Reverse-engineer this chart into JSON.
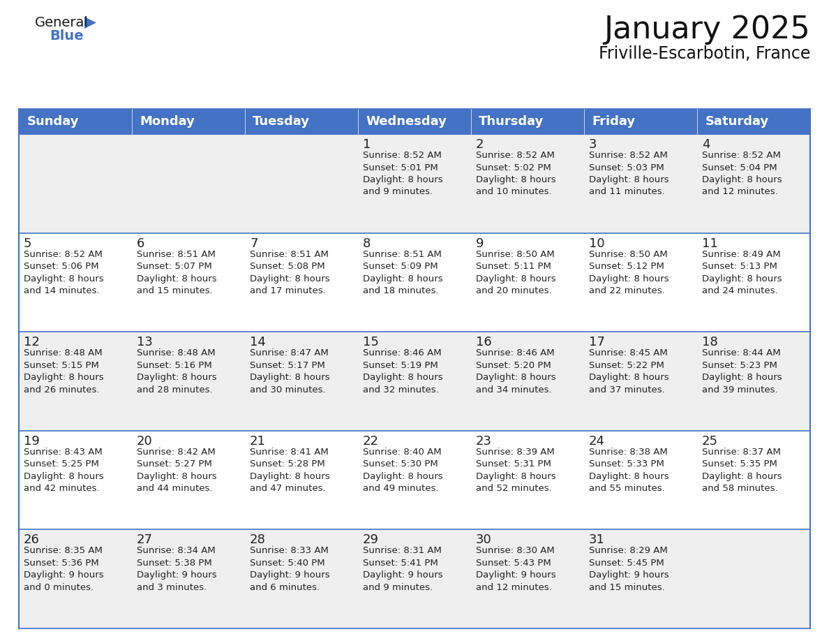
{
  "title": "January 2025",
  "subtitle": "Friville-Escarbotin, France",
  "header_color": "#4472C4",
  "header_text_color": "#FFFFFF",
  "cell_bg_white": "#FFFFFF",
  "cell_bg_gray": "#EFEFEF",
  "border_color": "#4472C4",
  "day_names": [
    "Sunday",
    "Monday",
    "Tuesday",
    "Wednesday",
    "Thursday",
    "Friday",
    "Saturday"
  ],
  "title_fontsize": 32,
  "subtitle_fontsize": 17,
  "day_header_fontsize": 13,
  "cell_number_fontsize": 13,
  "cell_text_fontsize": 9.5,
  "days": [
    {
      "date": 1,
      "col": 3,
      "row": 0,
      "sunrise": "8:52 AM",
      "sunset": "5:01 PM",
      "daylight_h": "8 hours",
      "daylight_m": "9 minutes"
    },
    {
      "date": 2,
      "col": 4,
      "row": 0,
      "sunrise": "8:52 AM",
      "sunset": "5:02 PM",
      "daylight_h": "8 hours",
      "daylight_m": "10 minutes"
    },
    {
      "date": 3,
      "col": 5,
      "row": 0,
      "sunrise": "8:52 AM",
      "sunset": "5:03 PM",
      "daylight_h": "8 hours",
      "daylight_m": "11 minutes"
    },
    {
      "date": 4,
      "col": 6,
      "row": 0,
      "sunrise": "8:52 AM",
      "sunset": "5:04 PM",
      "daylight_h": "8 hours",
      "daylight_m": "12 minutes"
    },
    {
      "date": 5,
      "col": 0,
      "row": 1,
      "sunrise": "8:52 AM",
      "sunset": "5:06 PM",
      "daylight_h": "8 hours",
      "daylight_m": "14 minutes"
    },
    {
      "date": 6,
      "col": 1,
      "row": 1,
      "sunrise": "8:51 AM",
      "sunset": "5:07 PM",
      "daylight_h": "8 hours",
      "daylight_m": "15 minutes"
    },
    {
      "date": 7,
      "col": 2,
      "row": 1,
      "sunrise": "8:51 AM",
      "sunset": "5:08 PM",
      "daylight_h": "8 hours",
      "daylight_m": "17 minutes"
    },
    {
      "date": 8,
      "col": 3,
      "row": 1,
      "sunrise": "8:51 AM",
      "sunset": "5:09 PM",
      "daylight_h": "8 hours",
      "daylight_m": "18 minutes"
    },
    {
      "date": 9,
      "col": 4,
      "row": 1,
      "sunrise": "8:50 AM",
      "sunset": "5:11 PM",
      "daylight_h": "8 hours",
      "daylight_m": "20 minutes"
    },
    {
      "date": 10,
      "col": 5,
      "row": 1,
      "sunrise": "8:50 AM",
      "sunset": "5:12 PM",
      "daylight_h": "8 hours",
      "daylight_m": "22 minutes"
    },
    {
      "date": 11,
      "col": 6,
      "row": 1,
      "sunrise": "8:49 AM",
      "sunset": "5:13 PM",
      "daylight_h": "8 hours",
      "daylight_m": "24 minutes"
    },
    {
      "date": 12,
      "col": 0,
      "row": 2,
      "sunrise": "8:48 AM",
      "sunset": "5:15 PM",
      "daylight_h": "8 hours",
      "daylight_m": "26 minutes"
    },
    {
      "date": 13,
      "col": 1,
      "row": 2,
      "sunrise": "8:48 AM",
      "sunset": "5:16 PM",
      "daylight_h": "8 hours",
      "daylight_m": "28 minutes"
    },
    {
      "date": 14,
      "col": 2,
      "row": 2,
      "sunrise": "8:47 AM",
      "sunset": "5:17 PM",
      "daylight_h": "8 hours",
      "daylight_m": "30 minutes"
    },
    {
      "date": 15,
      "col": 3,
      "row": 2,
      "sunrise": "8:46 AM",
      "sunset": "5:19 PM",
      "daylight_h": "8 hours",
      "daylight_m": "32 minutes"
    },
    {
      "date": 16,
      "col": 4,
      "row": 2,
      "sunrise": "8:46 AM",
      "sunset": "5:20 PM",
      "daylight_h": "8 hours",
      "daylight_m": "34 minutes"
    },
    {
      "date": 17,
      "col": 5,
      "row": 2,
      "sunrise": "8:45 AM",
      "sunset": "5:22 PM",
      "daylight_h": "8 hours",
      "daylight_m": "37 minutes"
    },
    {
      "date": 18,
      "col": 6,
      "row": 2,
      "sunrise": "8:44 AM",
      "sunset": "5:23 PM",
      "daylight_h": "8 hours",
      "daylight_m": "39 minutes"
    },
    {
      "date": 19,
      "col": 0,
      "row": 3,
      "sunrise": "8:43 AM",
      "sunset": "5:25 PM",
      "daylight_h": "8 hours",
      "daylight_m": "42 minutes"
    },
    {
      "date": 20,
      "col": 1,
      "row": 3,
      "sunrise": "8:42 AM",
      "sunset": "5:27 PM",
      "daylight_h": "8 hours",
      "daylight_m": "44 minutes"
    },
    {
      "date": 21,
      "col": 2,
      "row": 3,
      "sunrise": "8:41 AM",
      "sunset": "5:28 PM",
      "daylight_h": "8 hours",
      "daylight_m": "47 minutes"
    },
    {
      "date": 22,
      "col": 3,
      "row": 3,
      "sunrise": "8:40 AM",
      "sunset": "5:30 PM",
      "daylight_h": "8 hours",
      "daylight_m": "49 minutes"
    },
    {
      "date": 23,
      "col": 4,
      "row": 3,
      "sunrise": "8:39 AM",
      "sunset": "5:31 PM",
      "daylight_h": "8 hours",
      "daylight_m": "52 minutes"
    },
    {
      "date": 24,
      "col": 5,
      "row": 3,
      "sunrise": "8:38 AM",
      "sunset": "5:33 PM",
      "daylight_h": "8 hours",
      "daylight_m": "55 minutes"
    },
    {
      "date": 25,
      "col": 6,
      "row": 3,
      "sunrise": "8:37 AM",
      "sunset": "5:35 PM",
      "daylight_h": "8 hours",
      "daylight_m": "58 minutes"
    },
    {
      "date": 26,
      "col": 0,
      "row": 4,
      "sunrise": "8:35 AM",
      "sunset": "5:36 PM",
      "daylight_h": "9 hours",
      "daylight_m": "0 minutes"
    },
    {
      "date": 27,
      "col": 1,
      "row": 4,
      "sunrise": "8:34 AM",
      "sunset": "5:38 PM",
      "daylight_h": "9 hours",
      "daylight_m": "3 minutes"
    },
    {
      "date": 28,
      "col": 2,
      "row": 4,
      "sunrise": "8:33 AM",
      "sunset": "5:40 PM",
      "daylight_h": "9 hours",
      "daylight_m": "6 minutes"
    },
    {
      "date": 29,
      "col": 3,
      "row": 4,
      "sunrise": "8:31 AM",
      "sunset": "5:41 PM",
      "daylight_h": "9 hours",
      "daylight_m": "9 minutes"
    },
    {
      "date": 30,
      "col": 4,
      "row": 4,
      "sunrise": "8:30 AM",
      "sunset": "5:43 PM",
      "daylight_h": "9 hours",
      "daylight_m": "12 minutes"
    },
    {
      "date": 31,
      "col": 5,
      "row": 4,
      "sunrise": "8:29 AM",
      "sunset": "5:45 PM",
      "daylight_h": "9 hours",
      "daylight_m": "15 minutes"
    }
  ],
  "num_rows": 5,
  "num_cols": 7
}
